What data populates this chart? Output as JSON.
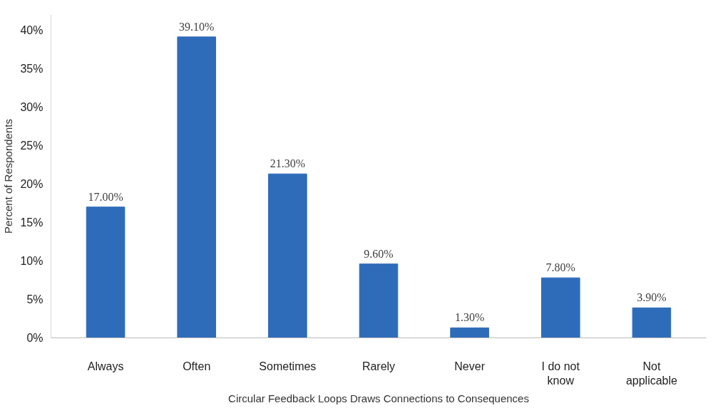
{
  "chart_data": {
    "type": "bar",
    "xlabel": "Circular Feedback Loops Draws Connections to Consequences",
    "ylabel": "Percent of Respondents",
    "categories": [
      "Always",
      "Often",
      "Sometimes",
      "Rarely",
      "Never",
      "I do not know",
      "Not applicable"
    ],
    "values": [
      17.0,
      39.1,
      21.3,
      9.6,
      1.3,
      7.8,
      3.9
    ],
    "value_labels": [
      "17.00%",
      "39.10%",
      "21.30%",
      "9.60%",
      "1.30%",
      "7.80%",
      "3.90%"
    ],
    "color": "#2e6cba",
    "ylim": [
      0,
      42
    ],
    "yticks": [
      {
        "value": 0,
        "label": "0%"
      },
      {
        "value": 5,
        "label": "5%"
      },
      {
        "value": 10,
        "label": "10%"
      },
      {
        "value": 15,
        "label": "15%"
      },
      {
        "value": 20,
        "label": "20%"
      },
      {
        "value": 25,
        "label": "25%"
      },
      {
        "value": 30,
        "label": "30%"
      },
      {
        "value": 35,
        "label": "35%"
      },
      {
        "value": 40,
        "label": "40%"
      }
    ],
    "grid": false
  }
}
